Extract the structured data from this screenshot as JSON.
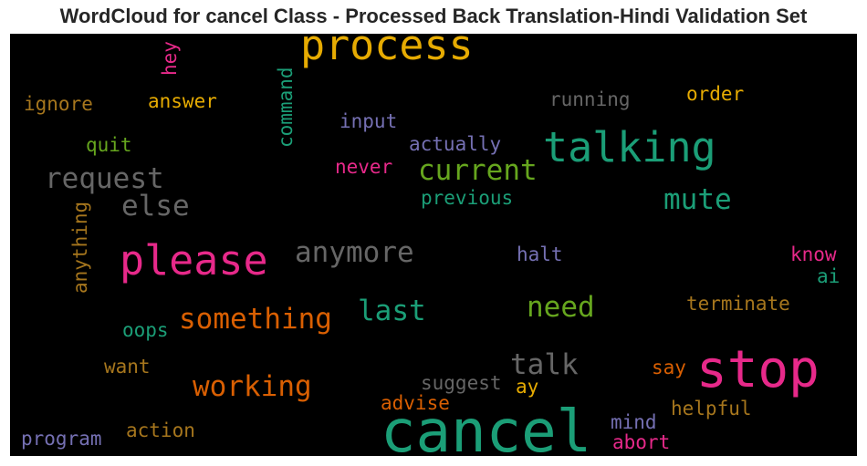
{
  "title": "WordCloud for cancel Class - Processed Back Translation-Hindi Validation Set",
  "colors": {
    "green": "#1b9e77",
    "orange": "#d95f02",
    "purple": "#7570b3",
    "pink": "#e7298a",
    "lime": "#66a61e",
    "gold": "#e6ab02",
    "brown": "#a6761d",
    "gray": "#666666"
  },
  "words": [
    {
      "text": "cancel",
      "color": "#1b9e77"
    },
    {
      "text": "stop",
      "color": "#e7298a"
    },
    {
      "text": "please",
      "color": "#e7298a"
    },
    {
      "text": "talking",
      "color": "#1b9e77"
    },
    {
      "text": "process",
      "color": "#e6ab02"
    },
    {
      "text": "something",
      "color": "#d95f02"
    },
    {
      "text": "anymore",
      "color": "#666666"
    },
    {
      "text": "request",
      "color": "#666666"
    },
    {
      "text": "working",
      "color": "#d95f02"
    },
    {
      "text": "current",
      "color": "#66a61e"
    },
    {
      "text": "mute",
      "color": "#1b9e77"
    },
    {
      "text": "last",
      "color": "#1b9e77"
    },
    {
      "text": "need",
      "color": "#66a61e"
    },
    {
      "text": "else",
      "color": "#666666"
    },
    {
      "text": "talk",
      "color": "#666666"
    },
    {
      "text": "ignore",
      "color": "#a6761d"
    },
    {
      "text": "answer",
      "color": "#e6ab02"
    },
    {
      "text": "running",
      "color": "#666666"
    },
    {
      "text": "order",
      "color": "#e6ab02"
    },
    {
      "text": "input",
      "color": "#7570b3"
    },
    {
      "text": "actually",
      "color": "#7570b3"
    },
    {
      "text": "quit",
      "color": "#66a61e"
    },
    {
      "text": "never",
      "color": "#e7298a"
    },
    {
      "text": "previous",
      "color": "#1b9e77"
    },
    {
      "text": "halt",
      "color": "#7570b3"
    },
    {
      "text": "know",
      "color": "#e7298a"
    },
    {
      "text": "ai",
      "color": "#1b9e77"
    },
    {
      "text": "terminate",
      "color": "#a6761d"
    },
    {
      "text": "oops",
      "color": "#1b9e77"
    },
    {
      "text": "want",
      "color": "#a6761d"
    },
    {
      "text": "suggest",
      "color": "#666666"
    },
    {
      "text": "ay",
      "color": "#e6ab02"
    },
    {
      "text": "say",
      "color": "#d95f02"
    },
    {
      "text": "advise",
      "color": "#d95f02"
    },
    {
      "text": "helpful",
      "color": "#a6761d"
    },
    {
      "text": "mind",
      "color": "#7570b3"
    },
    {
      "text": "abort",
      "color": "#e7298a"
    },
    {
      "text": "action",
      "color": "#a6761d"
    },
    {
      "text": "program",
      "color": "#7570b3"
    },
    {
      "text": "hey",
      "color": "#e7298a"
    },
    {
      "text": "command",
      "color": "#1b9e77"
    },
    {
      "text": "anything",
      "color": "#a6761d"
    }
  ]
}
